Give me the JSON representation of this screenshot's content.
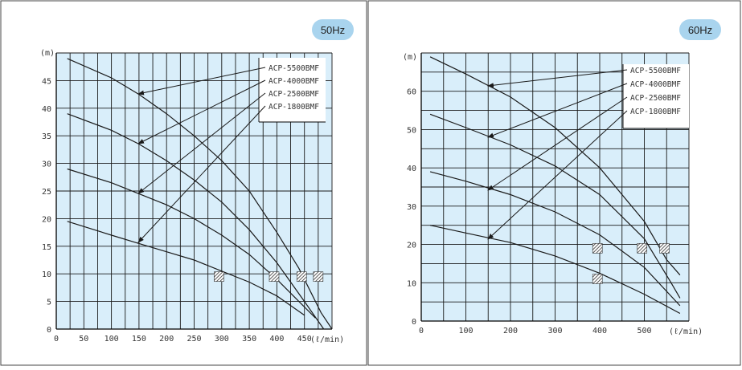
{
  "charts": {
    "left": {
      "badge": "50Hz",
      "y_unit": "(m)",
      "x_unit": "(ℓ/min)"
    },
    "right": {
      "badge": "60Hz",
      "y_unit": "(m)",
      "x_unit": "(ℓ/min)"
    }
  },
  "colors": {
    "plot_bg": "#d9eefa",
    "grid": "#1a1a1a",
    "badge_fill": "#a9d4ee",
    "curve": "#1a1a1a",
    "hatch": "#333333"
  },
  "chart_data": [
    {
      "type": "line",
      "title": "50Hz",
      "ylabel": "(m)",
      "xlabel": "(ℓ/min)",
      "xlim": [
        0,
        500
      ],
      "ylim": [
        0,
        50
      ],
      "x_ticks": [
        0,
        50,
        100,
        150,
        200,
        250,
        300,
        350,
        400,
        450
      ],
      "y_ticks": [
        0,
        5,
        10,
        15,
        20,
        25,
        30,
        35,
        40,
        45
      ],
      "grid": true,
      "legend_position": "top-right",
      "series": [
        {
          "name": "ACP-5500BMF",
          "x": [
            20,
            100,
            150,
            200,
            250,
            300,
            350,
            400,
            440,
            480,
            500
          ],
          "y": [
            49,
            45.5,
            42.5,
            39,
            35,
            30.5,
            25,
            17.5,
            11,
            3,
            0
          ]
        },
        {
          "name": "ACP-4000BMF",
          "x": [
            20,
            100,
            150,
            200,
            250,
            300,
            350,
            400,
            450,
            485
          ],
          "y": [
            39,
            36,
            33.5,
            30.5,
            27,
            23,
            18,
            12,
            5,
            0
          ]
        },
        {
          "name": "ACP-2500BMF",
          "x": [
            20,
            100,
            150,
            200,
            250,
            300,
            350,
            400,
            450,
            470
          ],
          "y": [
            29,
            26.5,
            24.5,
            22.5,
            20,
            17,
            13.5,
            9,
            4,
            2
          ]
        },
        {
          "name": "ACP-1800BMF",
          "x": [
            20,
            100,
            150,
            200,
            250,
            300,
            350,
            400,
            450
          ],
          "y": [
            19.5,
            17,
            15.5,
            14,
            12.5,
            10.5,
            8.5,
            6,
            2.5
          ]
        }
      ],
      "hatch_markers": [
        {
          "x": 295,
          "y": 9.5
        },
        {
          "x": 395,
          "y": 9.5
        },
        {
          "x": 445,
          "y": 9.5
        },
        {
          "x": 475,
          "y": 9.5
        }
      ]
    },
    {
      "type": "line",
      "title": "60Hz",
      "ylabel": "(m)",
      "xlabel": "(ℓ/min)",
      "xlim": [
        0,
        600
      ],
      "ylim": [
        0,
        70
      ],
      "x_ticks": [
        0,
        100,
        200,
        300,
        400,
        500
      ],
      "y_ticks": [
        0,
        10,
        20,
        30,
        40,
        50,
        60
      ],
      "grid": true,
      "legend_position": "top-right",
      "series": [
        {
          "name": "ACP-5500BMF",
          "x": [
            20,
            100,
            200,
            300,
            400,
            500,
            550,
            580
          ],
          "y": [
            69,
            64.5,
            58.5,
            50.5,
            40,
            26,
            16,
            12
          ]
        },
        {
          "name": "ACP-4000BMF",
          "x": [
            20,
            100,
            200,
            300,
            400,
            500,
            560,
            580
          ],
          "y": [
            54,
            50.5,
            46,
            40.5,
            33,
            21.5,
            10,
            6
          ]
        },
        {
          "name": "ACP-2500BMF",
          "x": [
            20,
            100,
            200,
            300,
            400,
            500,
            580
          ],
          "y": [
            39,
            36.5,
            33,
            28.5,
            22.5,
            14,
            4
          ]
        },
        {
          "name": "ACP-1800BMF",
          "x": [
            20,
            100,
            200,
            300,
            400,
            500,
            580
          ],
          "y": [
            25,
            23,
            20.5,
            17,
            12.5,
            7,
            2
          ]
        }
      ],
      "hatch_markers": [
        {
          "x": 395,
          "y": 19
        },
        {
          "x": 395,
          "y": 11
        },
        {
          "x": 495,
          "y": 19
        },
        {
          "x": 545,
          "y": 19
        }
      ]
    }
  ]
}
